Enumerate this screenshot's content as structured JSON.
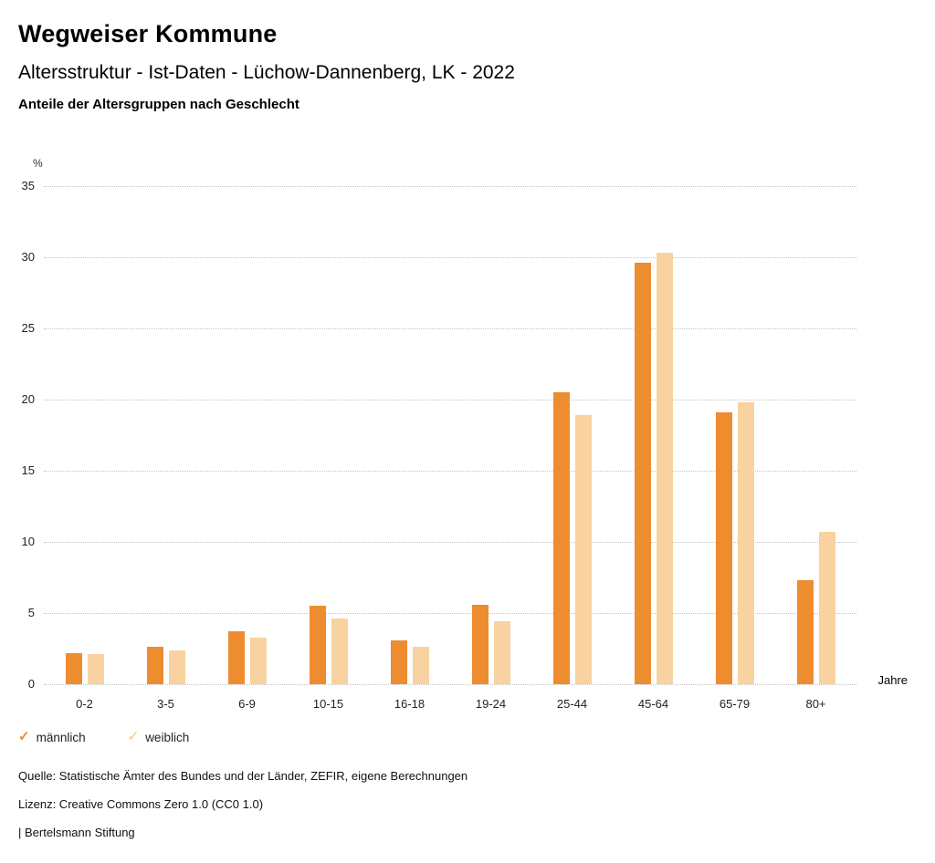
{
  "header": {
    "title": "Wegweiser Kommune",
    "subtitle": "Altersstruktur - Ist-Daten - Lüchow-Dannenberg, LK - 2022",
    "subsubtitle": "Anteile der Altersgruppen nach Geschlecht"
  },
  "chart_data": {
    "type": "bar",
    "title": "Anteile der Altersgruppen nach Geschlecht",
    "categories": [
      "0-2",
      "3-5",
      "6-9",
      "10-15",
      "16-18",
      "19-24",
      "25-44",
      "45-64",
      "65-79",
      "80+"
    ],
    "series": [
      {
        "name": "männlich",
        "color": "#ee8c30",
        "values": [
          2.2,
          2.6,
          3.7,
          5.5,
          3.1,
          5.6,
          20.5,
          29.6,
          19.1,
          7.3
        ]
      },
      {
        "name": "weiblich",
        "color": "#f8d2a0",
        "values": [
          2.1,
          2.4,
          3.3,
          4.6,
          2.6,
          4.4,
          18.9,
          30.3,
          19.8,
          10.7
        ]
      }
    ],
    "ylabel": "%",
    "xlabel": "Jahre",
    "ylim": [
      0,
      35
    ],
    "yticks": [
      0,
      5,
      10,
      15,
      20,
      25,
      30,
      35
    ],
    "grid": "horizontal-dotted",
    "legend_position": "bottom-left"
  },
  "legend": {
    "items": [
      {
        "label": "männlich",
        "color": "#ee8c30",
        "icon": "check-icon"
      },
      {
        "label": "weiblich",
        "color": "#f8d2a0",
        "icon": "check-icon"
      }
    ],
    "check_glyph": "✓"
  },
  "footer": {
    "source": "Quelle: Statistische Ämter des Bundes und der Länder, ZEFIR, eigene Berechnungen",
    "license": "Lizenz: Creative Commons Zero 1.0 (CC0 1.0)",
    "attribution": "| Bertelsmann Stiftung"
  }
}
